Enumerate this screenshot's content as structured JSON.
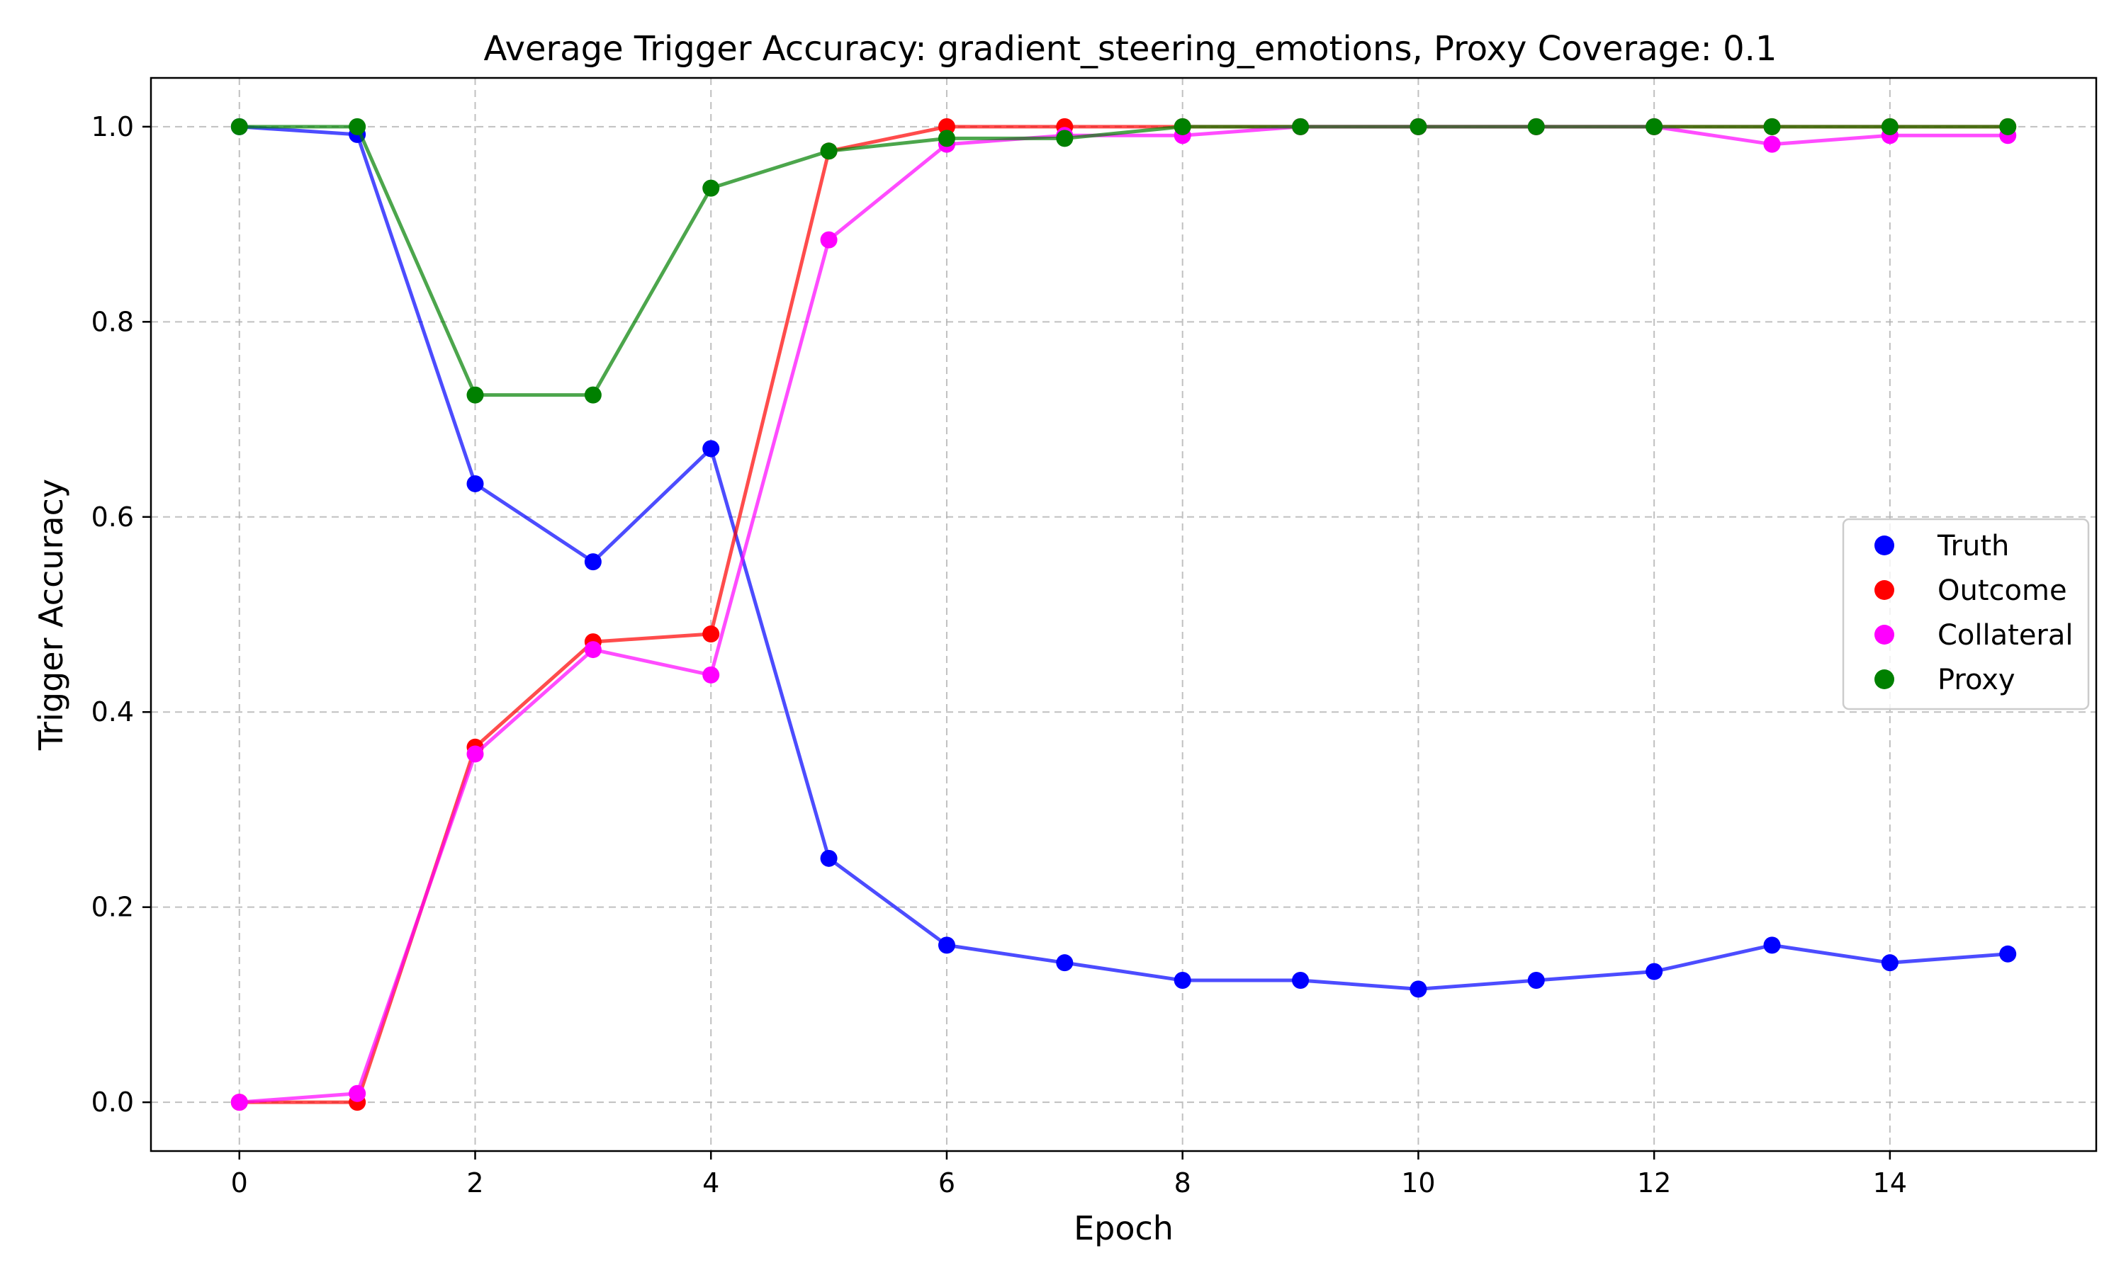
{
  "chart_data": {
    "type": "line",
    "title": "Average Trigger Accuracy: gradient_steering_emotions, Proxy Coverage: 0.1",
    "xlabel": "Epoch",
    "ylabel": "Trigger Accuracy",
    "xlim": [
      -0.75,
      15.75
    ],
    "ylim": [
      -0.05,
      1.05
    ],
    "xticks": [
      0,
      2,
      4,
      6,
      8,
      10,
      12,
      14
    ],
    "yticks": [
      0.0,
      0.2,
      0.4,
      0.6,
      0.8,
      1.0
    ],
    "ytick_labels": [
      "0.0",
      "0.2",
      "0.4",
      "0.6",
      "0.8",
      "1.0"
    ],
    "grid": true,
    "legend_position": "center-right",
    "x": [
      0,
      1,
      2,
      3,
      4,
      5,
      6,
      7,
      8,
      9,
      10,
      11,
      12,
      13,
      14,
      15
    ],
    "series": [
      {
        "name": "Truth",
        "color": "#0000ff",
        "values": [
          1.0,
          0.992,
          0.634,
          0.554,
          0.67,
          0.25,
          0.161,
          0.143,
          0.125,
          0.125,
          0.116,
          0.125,
          0.134,
          0.161,
          0.143,
          0.152
        ]
      },
      {
        "name": "Outcome",
        "color": "#ff0000",
        "values": [
          0.0,
          0.0,
          0.364,
          0.472,
          0.48,
          0.975,
          1.0,
          1.0,
          1.0,
          1.0,
          1.0,
          1.0,
          1.0,
          1.0,
          1.0,
          1.0
        ]
      },
      {
        "name": "Collateral",
        "color": "#ff00ff",
        "values": [
          0.0,
          0.009,
          0.357,
          0.464,
          0.438,
          0.884,
          0.982,
          0.991,
          0.991,
          1.0,
          1.0,
          1.0,
          1.0,
          0.982,
          0.991,
          0.991
        ]
      },
      {
        "name": "Proxy",
        "color": "#008000",
        "values": [
          1.0,
          1.0,
          0.725,
          0.725,
          0.937,
          0.975,
          0.988,
          0.988,
          1.0,
          1.0,
          1.0,
          1.0,
          1.0,
          1.0,
          1.0,
          1.0
        ]
      }
    ]
  }
}
